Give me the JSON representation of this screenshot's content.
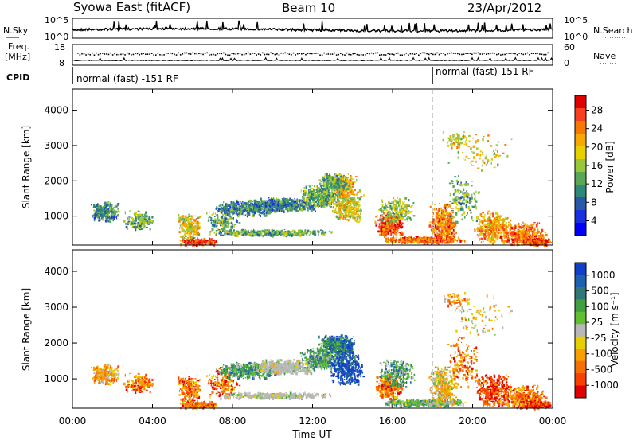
{
  "header": {
    "title": "Syowa East (fitACF)",
    "beam": "Beam 10",
    "date": "23/Apr/2012"
  },
  "noise_panel": {
    "left_label": "N.Sky",
    "right_label": "N.Search",
    "left_ticks": [
      "10^5",
      "10^0"
    ],
    "right_ticks": [
      "10^5",
      "10^0"
    ]
  },
  "freq_panel": {
    "left_label_1": "Freq.",
    "left_label_2": "[MHz]",
    "right_label": "Nave",
    "left_ticks": [
      "18",
      "8"
    ],
    "right_ticks": [
      "60",
      "0"
    ]
  },
  "cpid_panel": {
    "label": "CPID",
    "modes": [
      "normal (fast) -151 RF",
      "normal (fast) 151 RF"
    ]
  },
  "x_axis": {
    "label": "Time UT",
    "ticks": [
      "00:00",
      "04:00",
      "08:00",
      "12:00",
      "16:00",
      "20:00",
      "00:00"
    ]
  },
  "chart_data": [
    {
      "type": "heatmap",
      "panel": "power",
      "ylabel": "Slant Range [km]",
      "y_ticks": [
        1000,
        2000,
        3000,
        4000
      ],
      "ylim": [
        180,
        4600
      ],
      "xlim_hours": [
        0,
        24
      ],
      "colorbar": {
        "label": "Power [dB]",
        "ticks": [
          "28",
          "24",
          "20",
          "16",
          "12",
          "8",
          "4"
        ],
        "colors": [
          "#e00000",
          "#f84020",
          "#f87800",
          "#f8a800",
          "#e8d000",
          "#98c838",
          "#58a858",
          "#308878",
          "#2858a8",
          "#1830e0",
          "#0000f8"
        ]
      }
    },
    {
      "type": "heatmap",
      "panel": "velocity",
      "ylabel": "Slant Range [km]",
      "y_ticks": [
        1000,
        2000,
        3000,
        4000
      ],
      "ylim": [
        180,
        4600
      ],
      "xlim_hours": [
        0,
        24
      ],
      "colorbar": {
        "label": "Velocity [m s⁻¹]",
        "ticks": [
          "1000",
          "500",
          "100",
          "25",
          "-25",
          "-100",
          "-500",
          "-1000"
        ],
        "colors": [
          "#1040c8",
          "#1c60b0",
          "#307878",
          "#40a040",
          "#60c030",
          "#b8b8b8",
          "#e8d000",
          "#f8a000",
          "#f87000",
          "#f84000",
          "#e00000"
        ]
      }
    }
  ]
}
